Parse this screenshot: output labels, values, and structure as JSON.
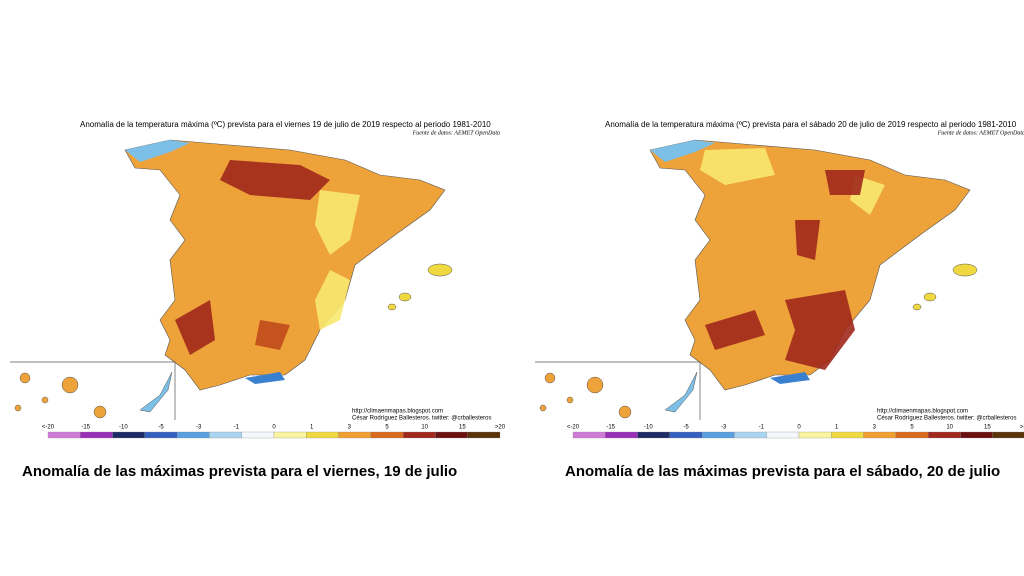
{
  "panels": [
    {
      "title": "Anomalía de la temperatura máxima (ºC) prevista para el viernes 19 de julio de 2019 respecto al periodo 1981-2010",
      "source": "Fuente de datos: AEMET OpenData",
      "url": "http://climaenmapas.blogspot.com",
      "credit": "César Rodríguez Ballesteros. twitter: @crballesteros",
      "caption": "Anomalía de las máximas prevista para el viernes, 19 de julio"
    },
    {
      "title": "Anomalía de la temperatura máxima (ºC) prevista para el sábado 20 de julio de 2019 respecto al periodo 1981-2010",
      "source": "Fuente de datos: AEMET OpenData",
      "url": "http://climaenmapas.blogspot.com",
      "credit": "César Rodríguez Ballesteros. twitter: @crballesteros",
      "caption": "Anomalía de las máximas prevista para el sábado, 20 de julio"
    }
  ],
  "legend": {
    "labels": [
      "<-20",
      "-15",
      "-10",
      "-5",
      "-3",
      "-1",
      "0",
      "1",
      "3",
      "5",
      "10",
      "15",
      ">20"
    ],
    "colors": [
      "#d07ad8",
      "#9a2fb8",
      "#1c2a66",
      "#3560c0",
      "#5aa0e0",
      "#a8d4f0",
      "#f4f8fc",
      "#f8f4a0",
      "#f0d840",
      "#f0a030",
      "#d86a1c",
      "#a0281c",
      "#6a1010",
      "#5a3408"
    ]
  }
}
